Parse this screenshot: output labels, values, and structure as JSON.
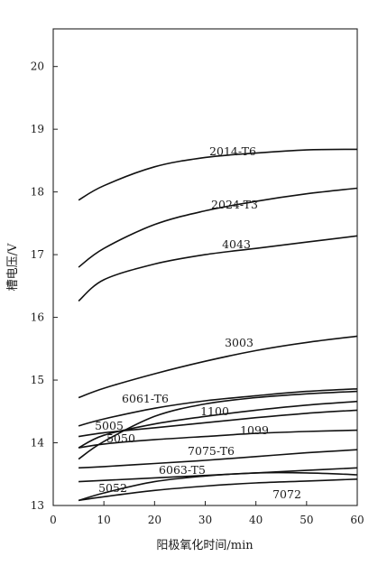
{
  "chart_data": {
    "type": "line",
    "xlabel": "阳极氧化时间/min",
    "ylabel": "槽电压/V",
    "xlim": [
      0,
      60
    ],
    "ylim": [
      13,
      20.6
    ],
    "x_ticks": [
      0,
      10,
      20,
      30,
      40,
      50,
      60
    ],
    "y_ticks": [
      13,
      14,
      15,
      16,
      17,
      18,
      19,
      20
    ],
    "grid": false,
    "legend": "none",
    "series": [
      {
        "name": "2014-T6",
        "x": [
          5,
          10,
          20,
          30,
          40,
          50,
          60
        ],
        "y": [
          17.87,
          18.1,
          18.4,
          18.55,
          18.62,
          18.67,
          18.68
        ]
      },
      {
        "name": "2024-T3",
        "x": [
          5,
          10,
          20,
          30,
          40,
          50,
          60
        ],
        "y": [
          16.8,
          17.1,
          17.48,
          17.7,
          17.85,
          17.97,
          18.06
        ]
      },
      {
        "name": "4043",
        "x": [
          5,
          10,
          20,
          30,
          40,
          50,
          60
        ],
        "y": [
          16.26,
          16.6,
          16.85,
          17.0,
          17.1,
          17.2,
          17.3
        ]
      },
      {
        "name": "3003",
        "x": [
          5,
          10,
          20,
          30,
          40,
          50,
          60
        ],
        "y": [
          14.72,
          14.87,
          15.1,
          15.3,
          15.47,
          15.6,
          15.7
        ]
      },
      {
        "name": "6061-T6",
        "x": [
          5,
          10,
          20,
          30,
          40,
          50,
          60
        ],
        "y": [
          14.27,
          14.38,
          14.55,
          14.67,
          14.75,
          14.82,
          14.86
        ]
      },
      {
        "name": "1100",
        "x": [
          5,
          10,
          20,
          30,
          40,
          50,
          60
        ],
        "y": [
          13.92,
          14.12,
          14.3,
          14.42,
          14.52,
          14.6,
          14.66
        ]
      },
      {
        "name": "5005",
        "x": [
          5,
          10,
          20,
          30,
          40,
          50,
          60
        ],
        "y": [
          14.1,
          14.16,
          14.24,
          14.32,
          14.4,
          14.47,
          14.52
        ]
      },
      {
        "name": "5050",
        "x": [
          5,
          10,
          20,
          30,
          40,
          50,
          60
        ],
        "y": [
          13.74,
          14.02,
          14.42,
          14.62,
          14.72,
          14.78,
          14.82
        ]
      },
      {
        "name": "1099",
        "x": [
          5,
          10,
          20,
          30,
          40,
          50,
          60
        ],
        "y": [
          13.92,
          13.98,
          14.05,
          14.1,
          14.15,
          14.18,
          14.2
        ]
      },
      {
        "name": "7075-T6",
        "x": [
          5,
          10,
          20,
          30,
          40,
          50,
          60
        ],
        "y": [
          13.6,
          13.62,
          13.67,
          13.72,
          13.78,
          13.84,
          13.89
        ]
      },
      {
        "name": "6063-T5",
        "x": [
          5,
          10,
          20,
          30,
          40,
          50,
          60
        ],
        "y": [
          13.38,
          13.4,
          13.44,
          13.48,
          13.52,
          13.56,
          13.6
        ]
      },
      {
        "name": "5052",
        "x": [
          5,
          10,
          20,
          30,
          40,
          50,
          60
        ],
        "y": [
          13.08,
          13.2,
          13.38,
          13.47,
          13.52,
          13.52,
          13.49
        ]
      },
      {
        "name": "7072",
        "x": [
          5,
          10,
          20,
          30,
          40,
          50,
          60
        ],
        "y": [
          13.08,
          13.14,
          13.24,
          13.31,
          13.36,
          13.39,
          13.42
        ]
      }
    ]
  }
}
